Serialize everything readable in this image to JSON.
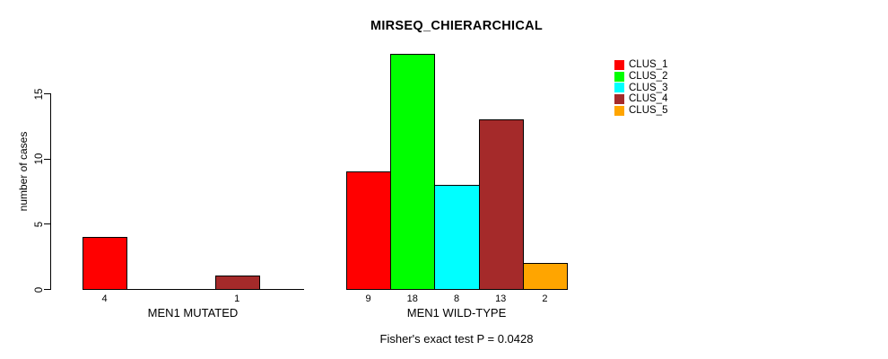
{
  "chart_data": {
    "type": "bar",
    "title": "MIRSEQ_CHIERARCHICAL",
    "subtitle": "Fisher's exact test P = 0.0428",
    "ylabel": "number of cases",
    "xlabel": "",
    "groups": [
      "MEN1 MUTATED",
      "MEN1 WILD-TYPE"
    ],
    "series": [
      {
        "name": "CLUS_1",
        "color": "#ff0000",
        "values": [
          4,
          9
        ]
      },
      {
        "name": "CLUS_2",
        "color": "#00ff00",
        "values": [
          0,
          18
        ]
      },
      {
        "name": "CLUS_3",
        "color": "#00ffff",
        "values": [
          0,
          8
        ]
      },
      {
        "name": "CLUS_4",
        "color": "#a52a2a",
        "values": [
          1,
          13
        ]
      },
      {
        "name": "CLUS_5",
        "color": "#ffa500",
        "values": [
          0,
          2
        ]
      }
    ],
    "bar_value_labels": [
      [
        "4",
        "",
        "",
        "1",
        ""
      ],
      [
        "9",
        "18",
        "8",
        "13",
        "2"
      ]
    ],
    "yticks": [
      0,
      5,
      10,
      15
    ],
    "ylim": [
      0,
      18
    ],
    "grid": false,
    "legend_position": "top-right",
    "legend_entries": [
      "CLUS_1",
      "CLUS_2",
      "CLUS_3",
      "CLUS_4",
      "CLUS_5"
    ],
    "axis_color": "#000000",
    "bar_border_color": "#000000",
    "background_color": "#ffffff",
    "text_color": "#000000"
  }
}
